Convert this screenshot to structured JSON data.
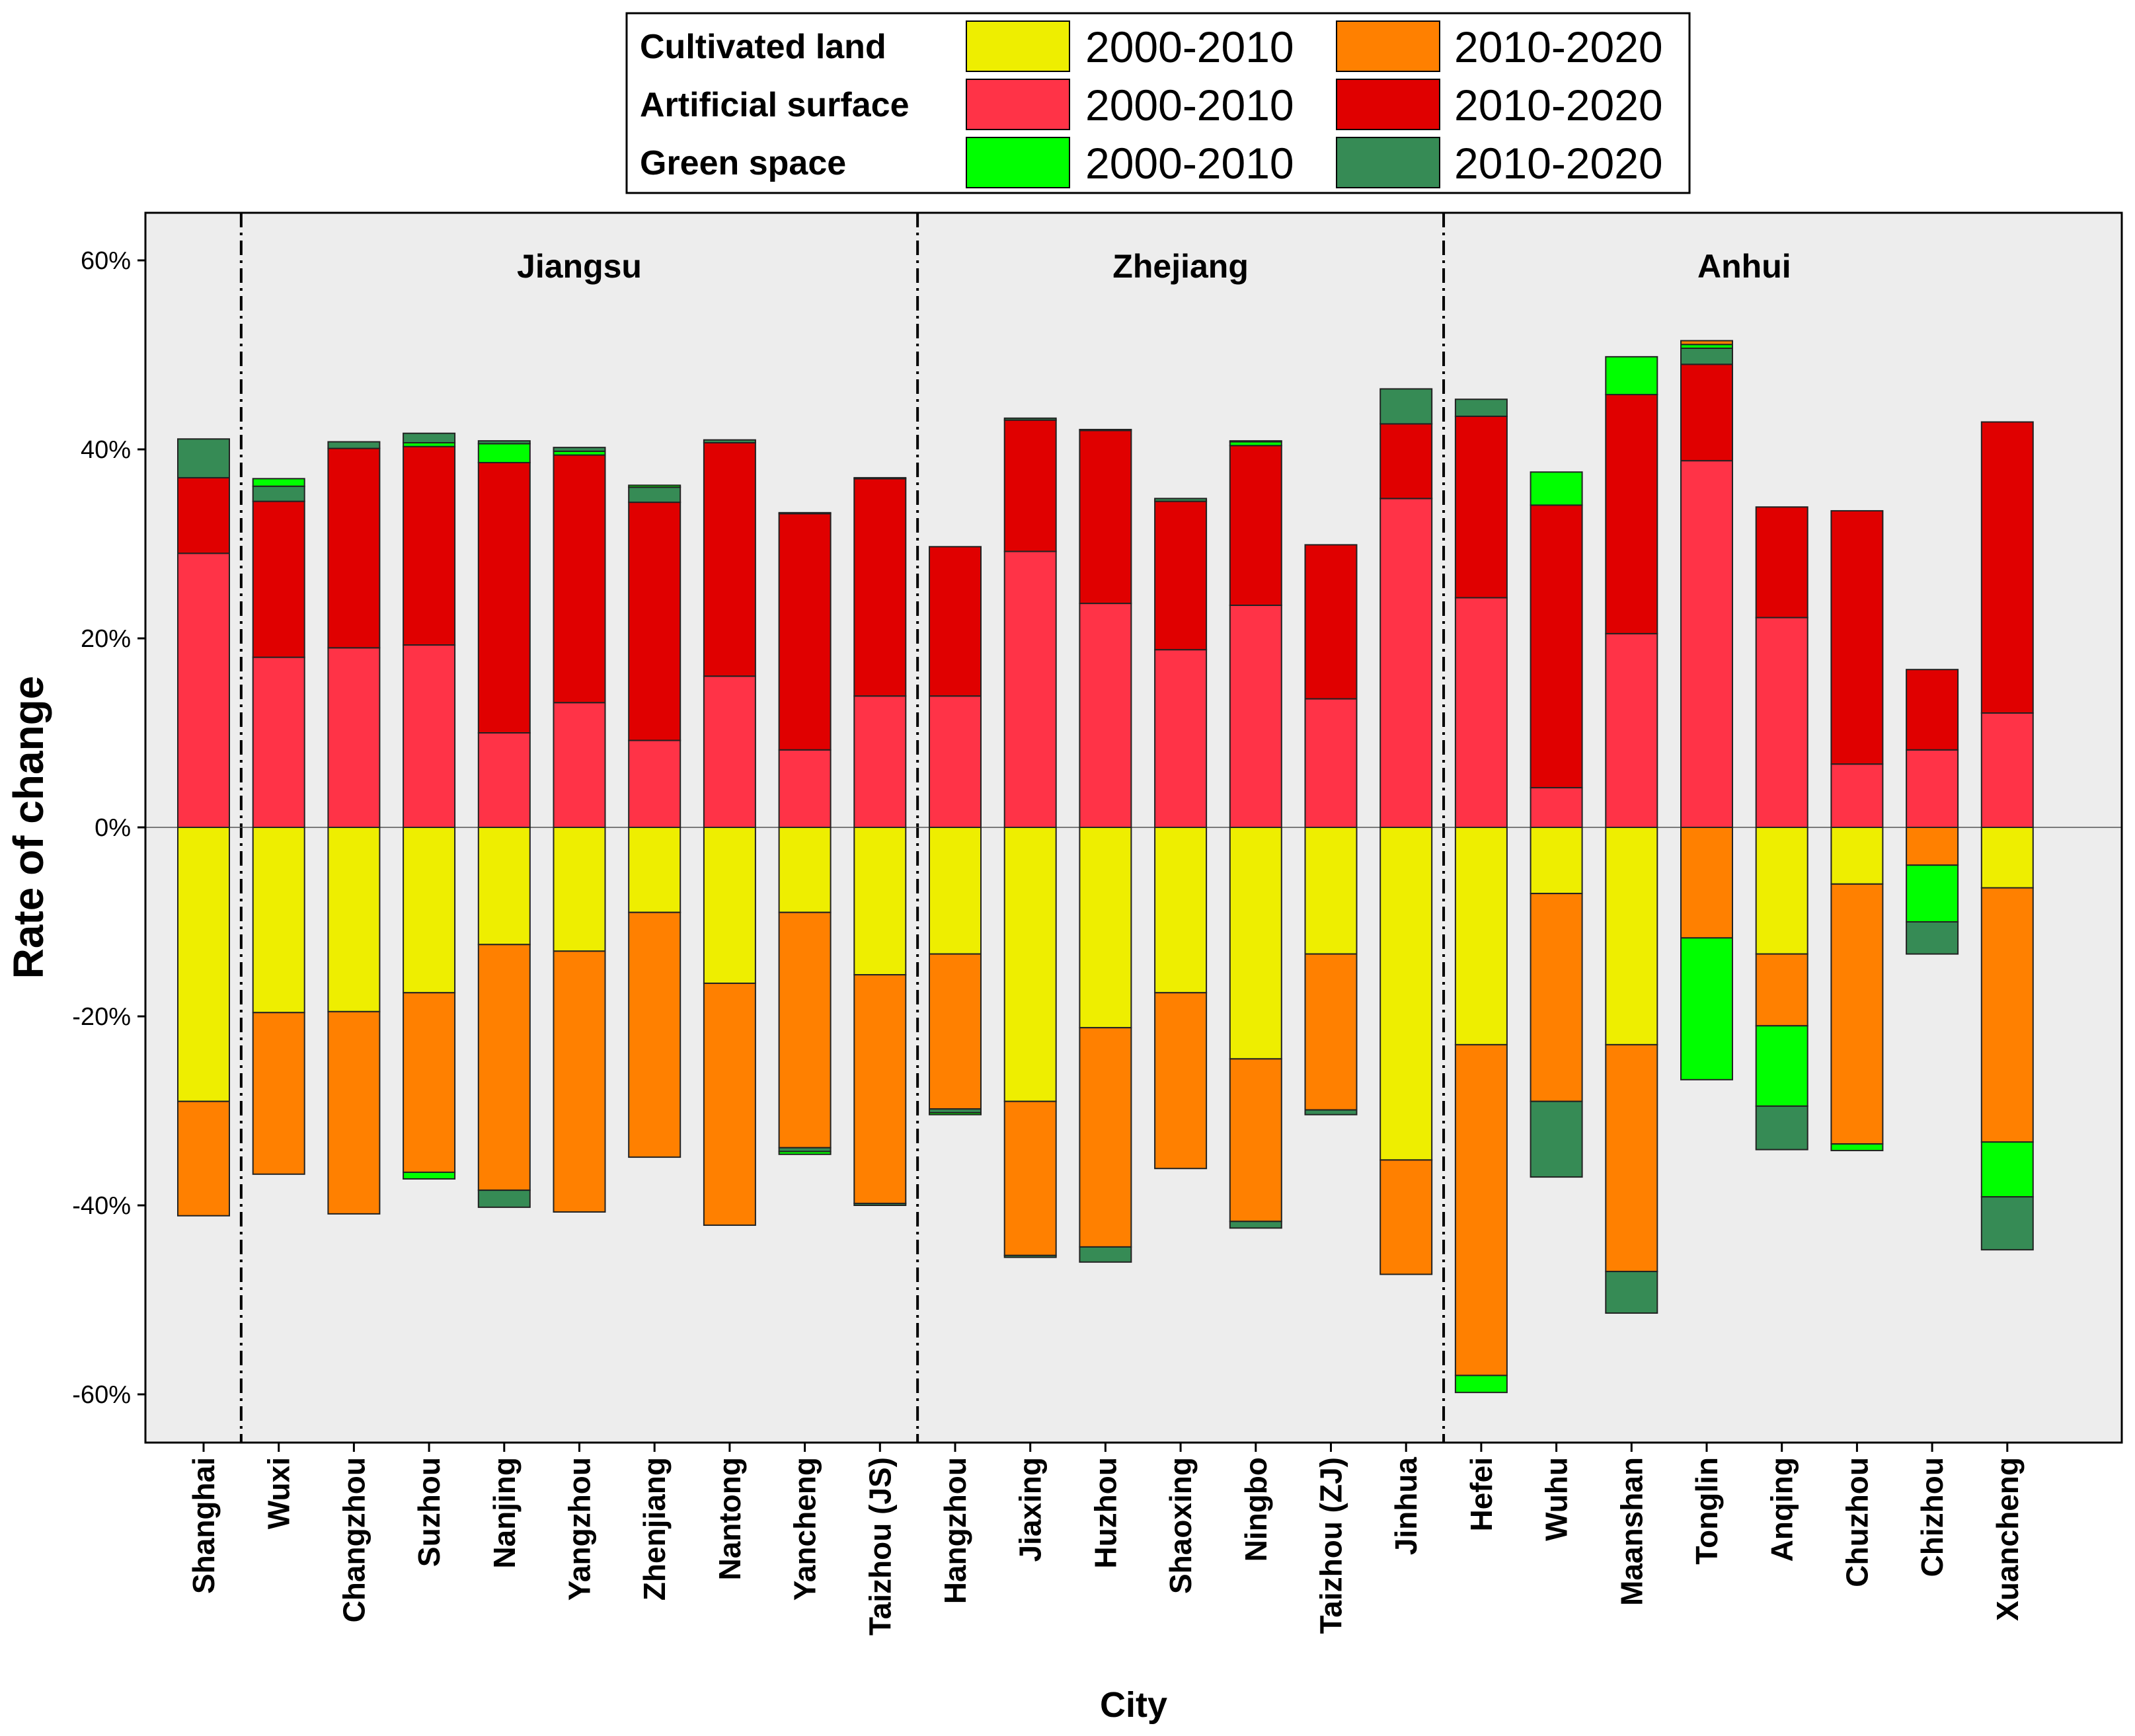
{
  "chart_data": {
    "type": "bar",
    "stacked": true,
    "xlabel": "City",
    "ylabel": "Rate of change",
    "ylim": [
      -0.65,
      0.65
    ],
    "yticks": [
      -0.6,
      -0.4,
      -0.2,
      0,
      0.2,
      0.4,
      0.6
    ],
    "ytick_labels": [
      "-60%",
      "-40%",
      "-20%",
      "0%",
      "20%",
      "40%",
      "60%"
    ],
    "legend_rows": [
      "Cultivated land",
      "Artificial surface",
      "Green space"
    ],
    "legend_period_labels": [
      "2000-2010",
      "2010-2020"
    ],
    "provinces": [
      {
        "name": "Jiangsu",
        "first": 1,
        "last": 9
      },
      {
        "name": "Zhejiang",
        "first": 10,
        "last": 16
      },
      {
        "name": "Anhui",
        "first": 17,
        "last": 24
      }
    ],
    "categories": [
      "Shanghai",
      "Wuxi",
      "Changzhou",
      "Suzhou",
      "Nanjing",
      "Yangzhou",
      "Zhenjiang",
      "Nantong",
      "Yancheng",
      "Taizhou (JS)",
      "Hangzhou",
      "Jiaxing",
      "Huzhou",
      "Shaoxing",
      "Ningbo",
      "Taizhou (ZJ)",
      "Jinhua",
      "Hefei",
      "Wuhu",
      "Maanshan",
      "Tonglin",
      "Anqing",
      "Chuzhou",
      "Chizhou",
      "Xuancheng"
    ],
    "series": [
      {
        "name": "Artificial surface 2000-2010",
        "color": "#ff3347",
        "values": [
          0.29,
          0.18,
          0.19,
          0.193,
          0.1,
          0.132,
          0.092,
          0.16,
          0.082,
          0.139,
          0.139,
          0.292,
          0.237,
          0.188,
          0.235,
          0.136,
          0.348,
          0.243,
          0.042,
          0.205,
          0.388,
          0.222,
          0.067,
          0.082,
          0.121
        ]
      },
      {
        "name": "Artificial surface 2010-2020",
        "color": "#e00000",
        "values": [
          0.08,
          0.165,
          0.211,
          0.21,
          0.286,
          0.262,
          0.252,
          0.247,
          0.25,
          0.23,
          0.158,
          0.139,
          0.183,
          0.157,
          0.169,
          0.163,
          0.079,
          0.192,
          0.299,
          0.253,
          0.102,
          0.117,
          0.268,
          0.085,
          0.308
        ]
      },
      {
        "name": "Cultivated land 2000-2010",
        "color": "#eeee00",
        "values": [
          -0.29,
          -0.196,
          -0.195,
          -0.175,
          -0.124,
          -0.131,
          -0.09,
          -0.165,
          -0.09,
          -0.156,
          -0.134,
          -0.29,
          -0.212,
          -0.175,
          -0.245,
          -0.134,
          -0.352,
          -0.23,
          -0.07,
          -0.23,
          0,
          -0.134,
          -0.06,
          0,
          -0.064
        ]
      },
      {
        "name": "Cultivated land 2010-2020",
        "color": "#ff8000",
        "values": [
          -0.121,
          -0.171,
          -0.214,
          -0.19,
          -0.26,
          -0.276,
          -0.259,
          -0.256,
          -0.249,
          -0.242,
          -0.164,
          -0.163,
          -0.232,
          -0.186,
          -0.172,
          -0.165,
          -0.121,
          -0.35,
          -0.22,
          -0.24,
          -0.117,
          -0.076,
          -0.275,
          -0.04,
          -0.269
        ]
      },
      {
        "name": "Green space 2000-2010",
        "color": "#00ff00",
        "values": [
          0,
          0,
          0,
          0.004,
          0.02,
          0.004,
          0,
          0,
          0,
          0,
          0,
          0,
          0,
          0,
          0.004,
          0,
          0,
          -0.018,
          0.035,
          0.04,
          0,
          -0.085,
          -0.007,
          -0.06,
          -0.058
        ]
      },
      {
        "name": "Green space 2010-2020",
        "color": "#368b55",
        "values": [
          0.041,
          0.016,
          0.007,
          0.01,
          0.003,
          0.004,
          0.016,
          0.003,
          0.001,
          0.001,
          0.0,
          0.002,
          0.001,
          0.003,
          0.001,
          0.0,
          0.037,
          0.018,
          0.0,
          0.0,
          0.017,
          0.0,
          0.0,
          -0.034,
          -0.056
        ]
      },
      {
        "name": "Green space 2000-2010 (+)",
        "color": "#00ff00",
        "values": [
          0,
          0.008,
          0,
          0,
          0,
          0,
          0.002,
          0,
          0,
          0,
          0,
          0,
          0,
          0,
          0,
          0,
          0,
          0,
          0,
          0,
          0.004,
          0,
          0,
          0,
          0
        ]
      },
      {
        "name": "Cultivated land 2010-2020 (+)",
        "color": "#ff8000",
        "values": [
          0,
          0,
          0,
          0,
          0,
          0,
          0,
          0,
          0,
          0,
          0,
          0,
          0,
          0,
          0,
          0,
          0,
          0,
          0,
          0,
          0.004,
          0,
          0,
          0,
          0
        ]
      },
      {
        "name": "Green space 2010-2020 (-)",
        "color": "#368b55",
        "values": [
          0,
          0,
          0,
          0,
          -0.018,
          0,
          0,
          0,
          -0.004,
          -0.002,
          -0.004,
          -0.002,
          -0.016,
          0,
          -0.007,
          -0.005,
          0,
          0,
          -0.08,
          -0.044,
          0,
          -0.046,
          0,
          0,
          0
        ]
      },
      {
        "name": "Green space 2000-2010 (-)",
        "color": "#00ff00",
        "values": [
          0,
          0,
          0,
          -0.007,
          0,
          0,
          0,
          0,
          -0.003,
          0,
          -0.002,
          0,
          0,
          0,
          0,
          0,
          0,
          0,
          0,
          0,
          -0.15,
          0,
          0,
          0,
          0
        ]
      }
    ]
  }
}
